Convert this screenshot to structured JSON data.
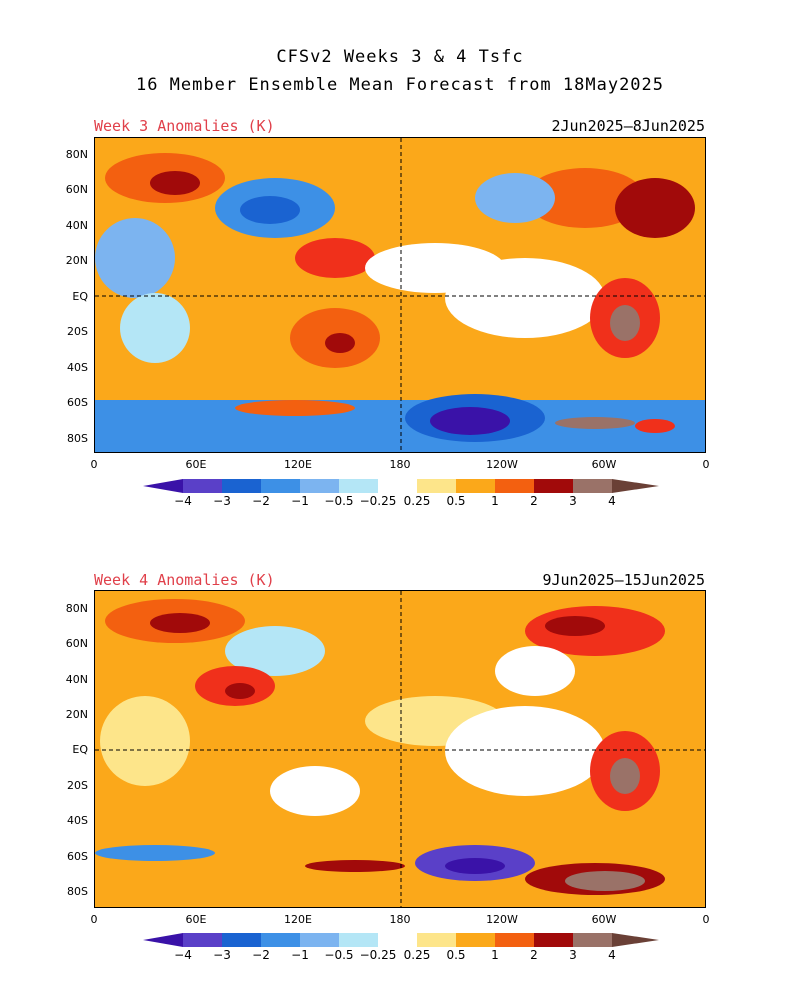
{
  "title": {
    "line1": "CFSv2 Weeks 3 & 4 Tsfc",
    "line2": "16 Member Ensemble Mean Forecast from 18May2025"
  },
  "panels": [
    {
      "label": "Week 3 Anomalies (K)",
      "dates": "2Jun2025–8Jun2025"
    },
    {
      "label": "Week 4 Anomalies (K)",
      "dates": "9Jun2025–15Jun2025"
    }
  ],
  "axes": {
    "lat_ticks": [
      "80N",
      "60N",
      "40N",
      "20N",
      "EQ",
      "20S",
      "40S",
      "60S",
      "80S"
    ],
    "lon_ticks": [
      "0",
      "60E",
      "120E",
      "180",
      "120W",
      "60W",
      "0"
    ]
  },
  "colorbar": {
    "labels": [
      "−4",
      "−3",
      "−2",
      "−1",
      "−0.5",
      "−0.25",
      "0.25",
      "0.5",
      "1",
      "2",
      "3",
      "4"
    ],
    "colors": [
      "#3a12a8",
      "#5a40c8",
      "#1a63d1",
      "#3d90e6",
      "#7cb4f0",
      "#b4e6f6",
      "#ffffff",
      "#fde58a",
      "#fba81a",
      "#f36010",
      "#f0301b",
      "#a10a0a",
      "#9a7268",
      "#6a4036"
    ]
  },
  "colors": {
    "title_text": "#000000",
    "panel_label": "#e0404a"
  }
}
